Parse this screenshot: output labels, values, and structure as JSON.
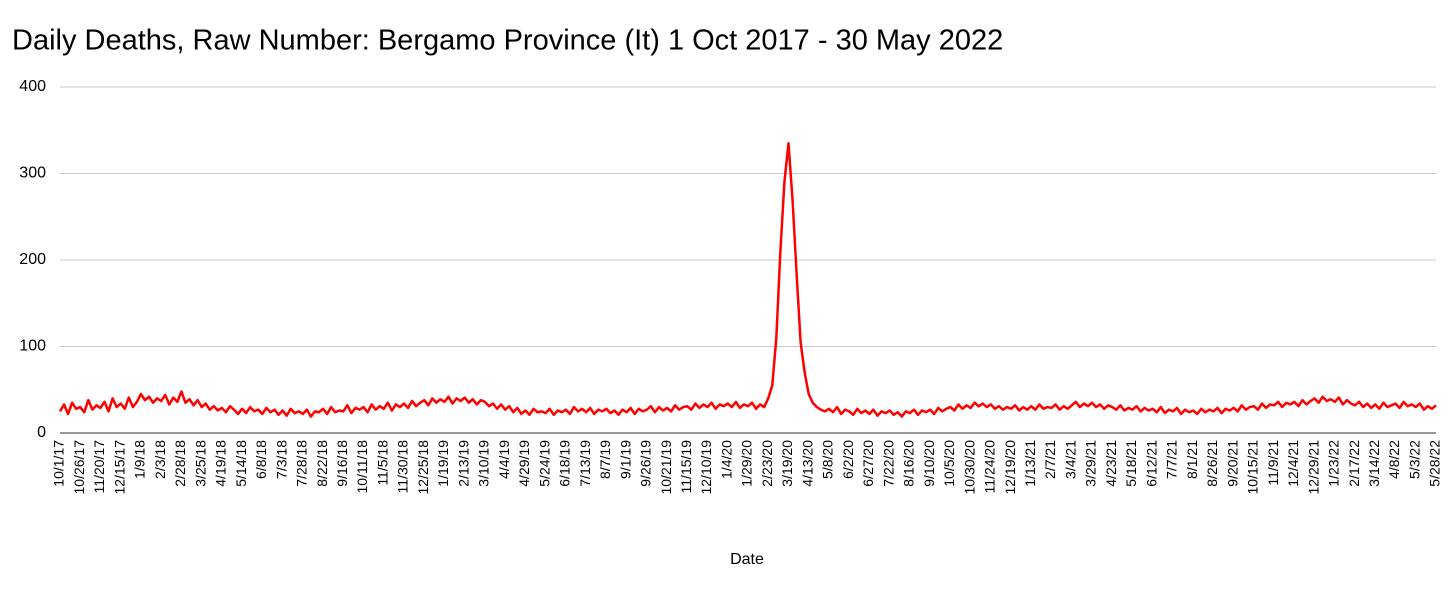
{
  "chart_data": {
    "type": "line",
    "title": "Daily Deaths, Raw Number: Bergamo Province (It) 1 Oct 2017 - 30 May 2022",
    "x_label": "Date",
    "categories": [
      "10/1/17",
      null,
      null,
      null,
      null,
      "10/26/17",
      null,
      null,
      null,
      null,
      "11/20/17",
      null,
      null,
      null,
      null,
      "12/15/17",
      null,
      null,
      null,
      null,
      "1/9/18",
      null,
      null,
      null,
      null,
      "2/3/18",
      null,
      null,
      null,
      null,
      "2/28/18",
      null,
      null,
      null,
      null,
      "3/25/18",
      null,
      null,
      null,
      null,
      "4/19/18",
      null,
      null,
      null,
      null,
      "5/14/18",
      null,
      null,
      null,
      null,
      "6/8/18",
      null,
      null,
      null,
      null,
      "7/3/18",
      null,
      null,
      null,
      null,
      "7/28/18",
      null,
      null,
      null,
      null,
      "8/22/18",
      null,
      null,
      null,
      null,
      "9/16/18",
      null,
      null,
      null,
      null,
      "10/11/18",
      null,
      null,
      null,
      null,
      "11/5/18",
      null,
      null,
      null,
      null,
      "11/30/18",
      null,
      null,
      null,
      null,
      "12/25/18",
      null,
      null,
      null,
      null,
      "1/19/19",
      null,
      null,
      null,
      null,
      "2/13/19",
      null,
      null,
      null,
      null,
      "3/10/19",
      null,
      null,
      null,
      null,
      "4/4/19",
      null,
      null,
      null,
      null,
      "4/29/19",
      null,
      null,
      null,
      null,
      "5/24/19",
      null,
      null,
      null,
      null,
      "6/18/19",
      null,
      null,
      null,
      null,
      "7/13/19",
      null,
      null,
      null,
      null,
      "8/7/19",
      null,
      null,
      null,
      null,
      "9/1/19",
      null,
      null,
      null,
      null,
      "9/26/19",
      null,
      null,
      null,
      null,
      "10/21/19",
      null,
      null,
      null,
      null,
      "11/15/19",
      null,
      null,
      null,
      null,
      "12/10/19",
      null,
      null,
      null,
      null,
      "1/4/20",
      null,
      null,
      null,
      null,
      "1/29/20",
      null,
      null,
      null,
      null,
      "2/23/20",
      null,
      null,
      null,
      null,
      "3/19/20",
      null,
      null,
      null,
      null,
      "4/13/20",
      null,
      null,
      null,
      null,
      "5/8/20",
      null,
      null,
      null,
      null,
      "6/2/20",
      null,
      null,
      null,
      null,
      "6/27/20",
      null,
      null,
      null,
      null,
      "7/22/20",
      null,
      null,
      null,
      null,
      "8/16/20",
      null,
      null,
      null,
      null,
      "9/10/20",
      null,
      null,
      null,
      null,
      "10/5/20",
      null,
      null,
      null,
      null,
      "10/30/20",
      null,
      null,
      null,
      null,
      "11/24/20",
      null,
      null,
      null,
      null,
      "12/19/20",
      null,
      null,
      null,
      null,
      "1/13/21",
      null,
      null,
      null,
      null,
      "2/7/21",
      null,
      null,
      null,
      null,
      "3/4/21",
      null,
      null,
      null,
      null,
      "3/29/21",
      null,
      null,
      null,
      null,
      "4/23/21",
      null,
      null,
      null,
      null,
      "5/18/21",
      null,
      null,
      null,
      null,
      "6/12/21",
      null,
      null,
      null,
      null,
      "7/7/21",
      null,
      null,
      null,
      null,
      "8/1/21",
      null,
      null,
      null,
      null,
      "8/26/21",
      null,
      null,
      null,
      null,
      "9/20/21",
      null,
      null,
      null,
      null,
      "10/15/21",
      null,
      null,
      null,
      null,
      "11/9/21",
      null,
      null,
      null,
      null,
      "12/4/21",
      null,
      null,
      null,
      null,
      "12/29/21",
      null,
      null,
      null,
      null,
      "1/23/22",
      null,
      null,
      null,
      null,
      "2/17/22",
      null,
      null,
      null,
      null,
      "3/14/22",
      null,
      null,
      null,
      null,
      "4/8/22",
      null,
      null,
      null,
      null,
      "5/3/22",
      null,
      null,
      null,
      null,
      "5/28/22"
    ],
    "series": [
      {
        "color": "#ff0000",
        "values": [
          25,
          33,
          22,
          35,
          28,
          30,
          24,
          38,
          27,
          32,
          29,
          36,
          25,
          40,
          30,
          34,
          28,
          41,
          30,
          36,
          45,
          38,
          42,
          35,
          40,
          37,
          44,
          33,
          41,
          36,
          48,
          35,
          39,
          32,
          38,
          30,
          34,
          27,
          31,
          26,
          29,
          24,
          31,
          27,
          22,
          28,
          23,
          30,
          25,
          27,
          22,
          29,
          24,
          27,
          21,
          26,
          20,
          28,
          23,
          25,
          22,
          27,
          19,
          25,
          24,
          28,
          22,
          30,
          24,
          26,
          25,
          32,
          23,
          29,
          27,
          30,
          24,
          33,
          27,
          31,
          28,
          35,
          26,
          33,
          30,
          34,
          29,
          37,
          31,
          35,
          38,
          32,
          40,
          35,
          39,
          36,
          42,
          34,
          40,
          37,
          41,
          35,
          39,
          33,
          38,
          36,
          31,
          34,
          28,
          33,
          27,
          31,
          24,
          29,
          22,
          26,
          21,
          28,
          24,
          25,
          23,
          28,
          21,
          26,
          24,
          27,
          22,
          30,
          25,
          28,
          24,
          29,
          22,
          27,
          25,
          28,
          23,
          26,
          21,
          27,
          24,
          29,
          22,
          28,
          25,
          27,
          31,
          24,
          30,
          26,
          29,
          25,
          32,
          27,
          30,
          31,
          27,
          34,
          29,
          33,
          30,
          35,
          28,
          33,
          31,
          34,
          30,
          36,
          29,
          33,
          31,
          35,
          28,
          33,
          30,
          40,
          55,
          110,
          210,
          290,
          335,
          270,
          185,
          105,
          70,
          45,
          35,
          30,
          27,
          25,
          28,
          24,
          30,
          22,
          27,
          25,
          21,
          28,
          23,
          26,
          22,
          27,
          20,
          25,
          23,
          26,
          21,
          24,
          19,
          25,
          23,
          27,
          21,
          26,
          24,
          27,
          22,
          29,
          25,
          28,
          30,
          26,
          33,
          28,
          32,
          29,
          35,
          31,
          34,
          30,
          33,
          28,
          31,
          27,
          30,
          28,
          32,
          26,
          30,
          27,
          31,
          27,
          33,
          28,
          30,
          29,
          33,
          27,
          31,
          28,
          32,
          36,
          30,
          34,
          31,
          35,
          30,
          33,
          28,
          32,
          30,
          27,
          32,
          26,
          29,
          27,
          31,
          25,
          29,
          26,
          28,
          24,
          30,
          23,
          27,
          25,
          29,
          22,
          27,
          24,
          26,
          22,
          28,
          24,
          27,
          25,
          29,
          23,
          28,
          26,
          29,
          25,
          32,
          27,
          30,
          31,
          27,
          34,
          29,
          33,
          32,
          36,
          30,
          35,
          33,
          36,
          31,
          38,
          33,
          37,
          40,
          35,
          42,
          37,
          39,
          36,
          41,
          33,
          38,
          34,
          32,
          36,
          30,
          34,
          29,
          33,
          28,
          35,
          30,
          32,
          34,
          29,
          36,
          31,
          33,
          30,
          34,
          27,
          31,
          28,
          32
        ]
      }
    ],
    "ylim": [
      0,
      400
    ],
    "yticks": [
      0,
      100,
      200,
      300,
      400
    ],
    "grid": true
  }
}
